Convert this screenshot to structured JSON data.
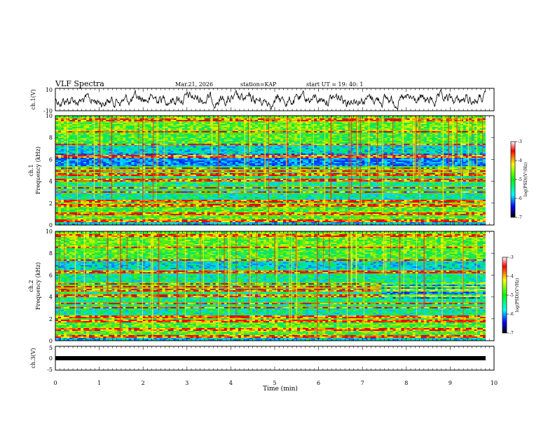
{
  "header": {
    "title": "VLF Spectra",
    "date": "Mar.21, 2026",
    "station": "station=KAP",
    "start_ut": "start UT =  19: 40: 1"
  },
  "chart_data": [
    {
      "type": "line",
      "panel": "waveform-ch1",
      "ylabel": "ch.1(V)",
      "ylim": [
        -10,
        10
      ],
      "yticks": [
        "10",
        "-10"
      ],
      "xlim": [
        0,
        10
      ]
    },
    {
      "type": "heatmap",
      "panel": "spectrogram-ch1",
      "ylabel_top": "ch.1",
      "ylabel": "Frequency (kHz)",
      "ylim": [
        0,
        10
      ],
      "yticks": [
        "0",
        "2",
        "4",
        "6",
        "8",
        "10"
      ],
      "xlim": [
        0,
        10
      ],
      "colorbar": {
        "label": "log(PSD)(V²/Hz)",
        "range": [
          -7,
          -3
        ],
        "ticks": [
          "-3",
          "-4",
          "-5",
          "-6",
          "-7"
        ]
      }
    },
    {
      "type": "heatmap",
      "panel": "spectrogram-ch2",
      "ylabel_top": "ch.2",
      "ylabel": "Frequency (kHz)",
      "ylim": [
        0,
        10
      ],
      "yticks": [
        "0",
        "2",
        "4",
        "6",
        "8",
        "10"
      ],
      "xlim": [
        0,
        10
      ],
      "colorbar": {
        "label": "log(PSD)(V²/Hz)",
        "range": [
          -7,
          -3
        ],
        "ticks": [
          "-3",
          "-4",
          "-5",
          "-6",
          "-7"
        ]
      }
    },
    {
      "type": "line",
      "panel": "waveform-ch3",
      "ylabel": "ch.3(V)",
      "ylim": [
        -5,
        5
      ],
      "yticks": [
        "5",
        "0",
        "-5"
      ],
      "level": 0,
      "xlim": [
        0,
        10
      ],
      "xlabel": "Time (min)",
      "xticks": [
        "0",
        "1",
        "2",
        "3",
        "4",
        "5",
        "6",
        "7",
        "8",
        "9",
        "10"
      ]
    }
  ]
}
